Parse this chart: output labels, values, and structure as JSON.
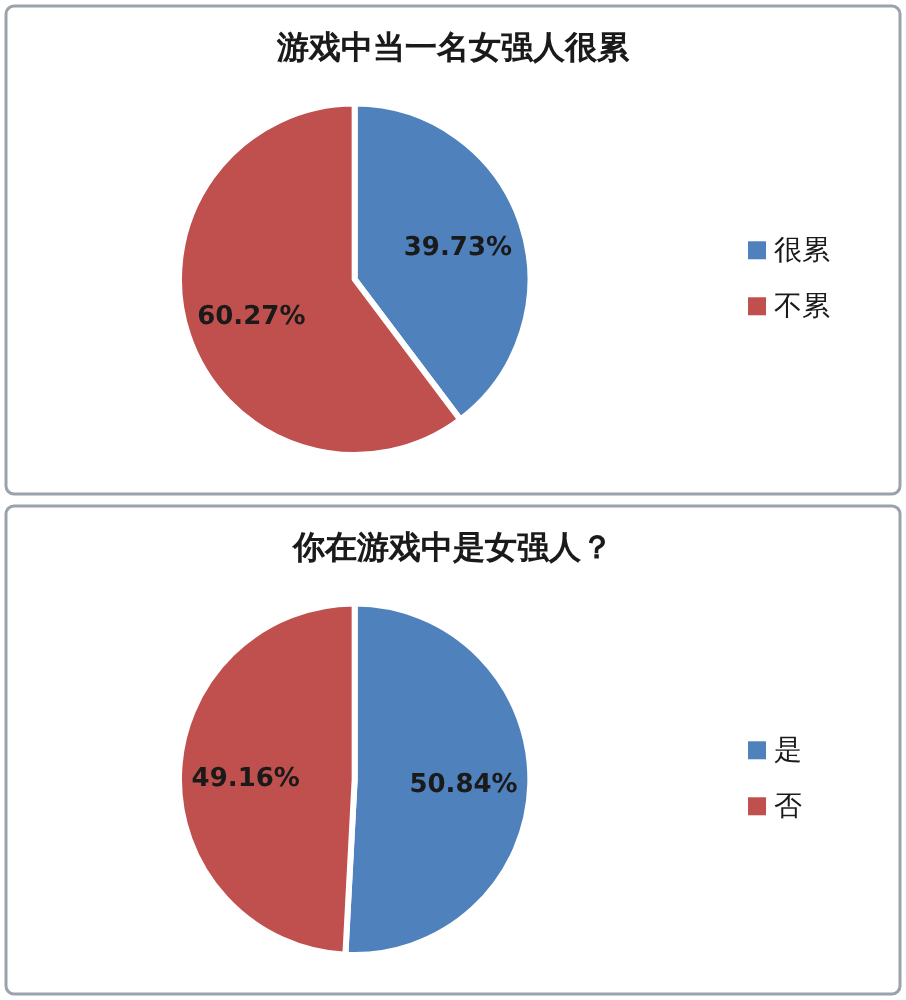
{
  "chart_data": [
    {
      "type": "pie",
      "title": "游戏中当一名女强人很累",
      "categories": [
        "很累",
        "不累"
      ],
      "values": [
        39.73,
        60.27
      ],
      "colors": [
        "#4f81bd",
        "#c0504d"
      ],
      "value_labels": [
        "39.73%",
        "60.27%"
      ],
      "legend": "right"
    },
    {
      "type": "pie",
      "title": "你在游戏中是女强人？",
      "categories": [
        "是",
        "否"
      ],
      "values": [
        50.84,
        49.16
      ],
      "colors": [
        "#4f81bd",
        "#c0504d"
      ],
      "value_labels": [
        "50.84%",
        "49.16%"
      ],
      "legend": "right"
    }
  ]
}
